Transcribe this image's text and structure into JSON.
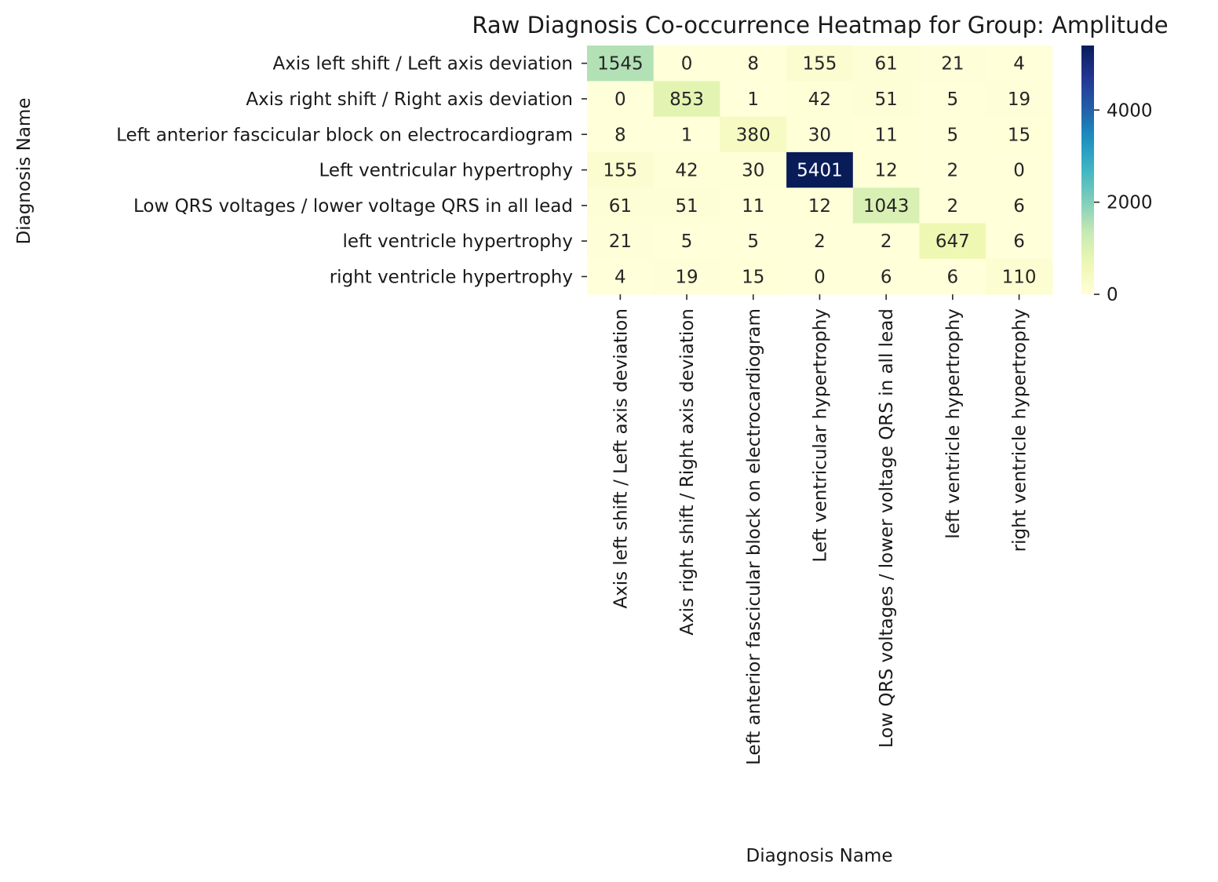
{
  "chart_data": {
    "type": "heatmap",
    "title": "Raw Diagnosis Co-occurrence Heatmap for Group: Amplitude",
    "xlabel": "Diagnosis Name",
    "ylabel": "Diagnosis Name",
    "colormap": "YlGnBu",
    "vmin": 0,
    "vmax": 5401,
    "colorbar_ticks": [
      0,
      2000,
      4000
    ],
    "legend_position": "right",
    "grid": false,
    "categories": [
      "Axis left shift / Left axis deviation",
      "Axis right shift / Right axis deviation",
      "Left anterior fascicular block on electrocardiogram",
      "Left ventricular hypertrophy",
      "Low QRS voltages / lower voltage QRS in all lead",
      "left ventricle hypertrophy",
      "right ventricle hypertrophy"
    ],
    "values": [
      [
        1545,
        0,
        8,
        155,
        61,
        21,
        4
      ],
      [
        0,
        853,
        1,
        42,
        51,
        5,
        19
      ],
      [
        8,
        1,
        380,
        30,
        11,
        5,
        15
      ],
      [
        155,
        42,
        30,
        5401,
        12,
        2,
        0
      ],
      [
        61,
        51,
        11,
        12,
        1043,
        2,
        6
      ],
      [
        21,
        5,
        5,
        2,
        2,
        647,
        6
      ],
      [
        4,
        19,
        15,
        0,
        6,
        6,
        110
      ]
    ]
  }
}
